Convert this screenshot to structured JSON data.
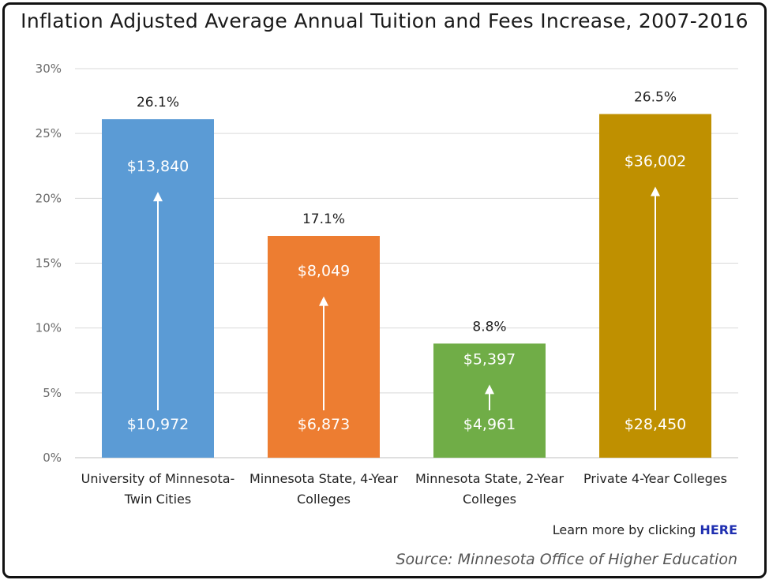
{
  "chart_data": {
    "type": "bar",
    "title": "Inflation Adjusted Average Annual Tuition and Fees Increase, 2007-2016",
    "xlabel": "",
    "ylabel": "",
    "ylim": [
      0,
      30
    ],
    "yticks": [
      0,
      5,
      10,
      15,
      20,
      25,
      30
    ],
    "ytick_labels": [
      "0%",
      "5%",
      "10%",
      "15%",
      "20%",
      "25%",
      "30%"
    ],
    "grid": true,
    "categories": [
      [
        "University of Minnesota-",
        "Twin Cities"
      ],
      [
        "Minnesota State, 4-Year",
        "Colleges"
      ],
      [
        "Minnesota State, 2-Year",
        "Colleges"
      ],
      [
        "Private 4-Year Colleges"
      ]
    ],
    "values": [
      26.1,
      17.1,
      8.8,
      26.5
    ],
    "value_labels": [
      "26.1%",
      "17.1%",
      "8.8%",
      "26.5%"
    ],
    "start_tuition": [
      "$10,972",
      "$6,873",
      "$4,961",
      "$28,450"
    ],
    "end_tuition": [
      "$13,840",
      "$8,049",
      "$5,397",
      "$36,002"
    ],
    "colors": [
      "#5b9bd5",
      "#ed7d31",
      "#70ad47",
      "#bf9000"
    ]
  },
  "footer": {
    "learn_more_prefix": "Learn more by clicking ",
    "learn_more_link": "HERE",
    "source": "Source: Minnesota Office of Higher Education"
  }
}
